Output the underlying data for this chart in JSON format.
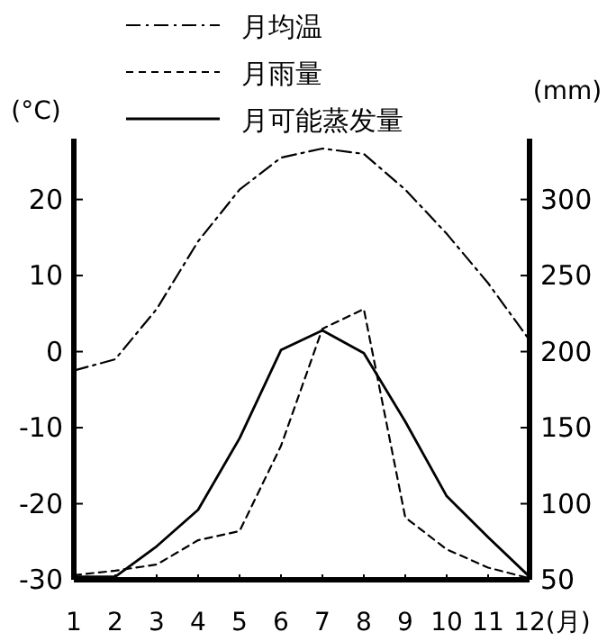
{
  "chart_data": {
    "type": "line",
    "ylabel": "(°C)",
    "y2label": "(mm)",
    "x": [
      1,
      2,
      3,
      4,
      5,
      6,
      7,
      8,
      9,
      10,
      11,
      12
    ],
    "xlim": [
      1,
      12
    ],
    "xticks": [
      1,
      2,
      3,
      4,
      5,
      6,
      7,
      8,
      9,
      10,
      11,
      {
        "value": 12,
        "label": "12(月)"
      }
    ],
    "ylim": [
      -30,
      28
    ],
    "yticks": [
      -30,
      -20,
      -10,
      0,
      10,
      20
    ],
    "y2lim": [
      50,
      340
    ],
    "y2ticks": [
      50,
      100,
      150,
      200,
      250,
      300
    ],
    "legend": "top",
    "grid": false,
    "marker": "none",
    "series": [
      {
        "name": "月均温",
        "color": "#000000",
        "line_style": "dashdot",
        "values": [
          -2.5,
          -1,
          5.6,
          14.5,
          21.3,
          25.5,
          26.7,
          26,
          21.3,
          15.5,
          9,
          1.5
        ]
      },
      {
        "name": "月雨量",
        "color": "#000000",
        "line_style": "dashed",
        "axis": "y2",
        "values": [
          53,
          56,
          60,
          76,
          82,
          138,
          215,
          228,
          91,
          70,
          58,
          51
        ]
      },
      {
        "name": "月可能蒸发量",
        "color": "#000000",
        "line_style": "solid",
        "axis": "y2",
        "values": [
          52,
          52,
          72,
          96,
          143,
          201,
          214,
          199,
          154,
          105,
          78,
          52
        ]
      }
    ]
  }
}
